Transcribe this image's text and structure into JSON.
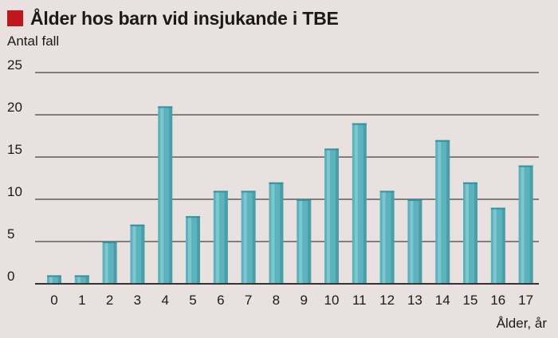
{
  "title": "Ålder hos barn vid insjukande i TBE",
  "colors": {
    "title_marker": "#c0161c",
    "bar": "#5bb3bd",
    "background": "#e8e1df"
  },
  "chart_data": {
    "type": "bar",
    "title": "Ålder hos barn vid insjukande i TBE",
    "ylabel": "Antal fall",
    "xlabel": "Ålder, år",
    "categories": [
      "0",
      "1",
      "2",
      "3",
      "4",
      "5",
      "6",
      "7",
      "8",
      "9",
      "10",
      "11",
      "12",
      "13",
      "14",
      "15",
      "16",
      "17"
    ],
    "values": [
      1,
      1,
      5,
      7,
      21,
      8,
      11,
      11,
      12,
      10,
      16,
      19,
      11,
      10,
      17,
      12,
      9,
      14
    ],
    "ylim": [
      0,
      25
    ],
    "yticks": [
      0,
      5,
      10,
      15,
      20,
      25
    ],
    "grid": true
  }
}
